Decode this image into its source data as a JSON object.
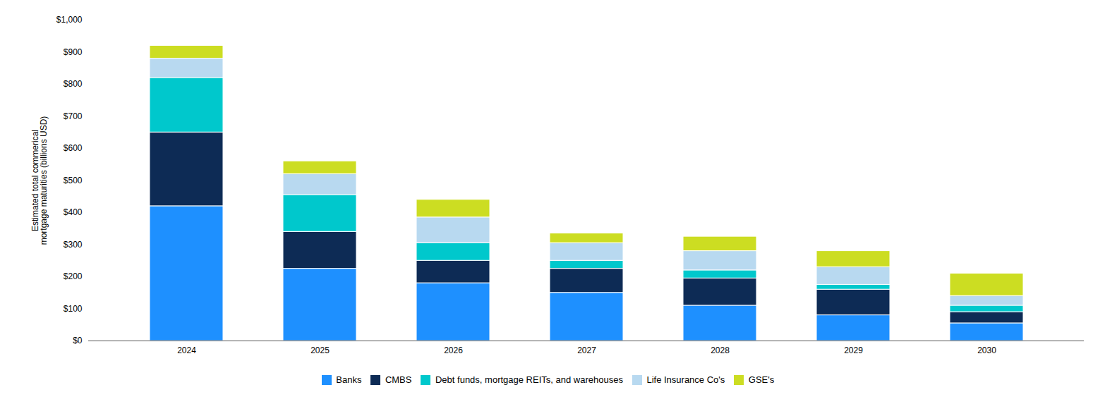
{
  "chart_data": {
    "type": "bar",
    "stacked": true,
    "categories": [
      "2024",
      "2025",
      "2026",
      "2027",
      "2028",
      "2029",
      "2030"
    ],
    "series": [
      {
        "name": "Banks",
        "color": "#1E90FF",
        "values": [
          420,
          225,
          180,
          150,
          110,
          80,
          55
        ]
      },
      {
        "name": "CMBS",
        "color": "#0D2B55",
        "values": [
          230,
          115,
          70,
          75,
          85,
          80,
          35
        ]
      },
      {
        "name": "Debt funds, mortgage REITs, and warehouses",
        "color": "#00C8CC",
        "values": [
          170,
          115,
          55,
          25,
          25,
          15,
          20
        ]
      },
      {
        "name": "Life Insurance Co's",
        "color": "#B8D9F0",
        "values": [
          60,
          65,
          80,
          55,
          60,
          55,
          30
        ]
      },
      {
        "name": "GSE's",
        "color": "#CCDD22",
        "values": [
          40,
          40,
          55,
          30,
          45,
          50,
          70
        ]
      }
    ],
    "ylabel": "Estimated total commerical\nmortgage maturities (billions USD)",
    "ylim": [
      0,
      1000
    ],
    "yticks": [
      {
        "value": 0,
        "label": "$0"
      },
      {
        "value": 100,
        "label": "$100"
      },
      {
        "value": 200,
        "label": "$200"
      },
      {
        "value": 300,
        "label": "$300"
      },
      {
        "value": 400,
        "label": "$400"
      },
      {
        "value": 500,
        "label": "$500"
      },
      {
        "value": 600,
        "label": "$600"
      },
      {
        "value": 700,
        "label": "$700"
      },
      {
        "value": 800,
        "label": "$800"
      },
      {
        "value": 900,
        "label": "$900"
      },
      {
        "value": 1000,
        "label": "$1,000"
      }
    ],
    "grid": false,
    "legend": "bottom"
  }
}
